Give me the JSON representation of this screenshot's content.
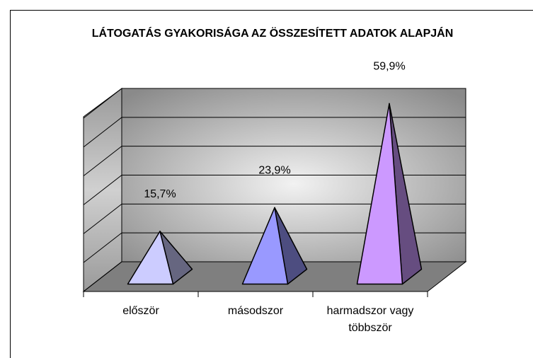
{
  "chart_data": {
    "type": "pyramid3d",
    "title": "LÁTOGATÁS GYAKORISÁGA AZ ÖSSZESÍTETT ADATOK ALAPJÁN",
    "categories": [
      "először",
      "másodszor",
      "harmadszor vagy többször"
    ],
    "values": [
      15.7,
      23.9,
      59.9
    ],
    "value_labels": [
      "15,7%",
      "23,9%",
      "59,9%"
    ],
    "colors": [
      "#ccccff",
      "#9999ff",
      "#cc99ff"
    ],
    "ylim": [
      0,
      60
    ],
    "yticks": [
      0,
      10,
      20,
      30,
      40,
      50,
      60
    ],
    "grid": true
  }
}
